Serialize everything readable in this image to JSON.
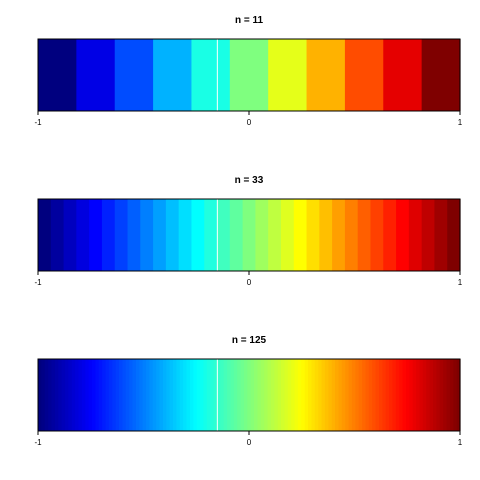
{
  "chart_data": [
    {
      "type": "heatmap",
      "title": "n =  11",
      "n": 11,
      "xlim": [
        -1,
        1
      ],
      "x_ticks": [
        -1,
        0,
        1
      ],
      "x_tick_labels": [
        "-1",
        "0",
        "1"
      ],
      "marker_x": -0.15,
      "marker_color": "#ffffff",
      "palette": "jet"
    },
    {
      "type": "heatmap",
      "title": "n =  33",
      "n": 33,
      "xlim": [
        -1,
        1
      ],
      "x_ticks": [
        -1,
        0,
        1
      ],
      "x_tick_labels": [
        "-1",
        "0",
        "1"
      ],
      "marker_x": -0.15,
      "marker_color": "#ffffff",
      "palette": "jet"
    },
    {
      "type": "heatmap",
      "title": "n = 125",
      "n": 125,
      "xlim": [
        -1,
        1
      ],
      "x_ticks": [
        -1,
        0,
        1
      ],
      "x_tick_labels": [
        "-1",
        "0",
        "1"
      ],
      "marker_x": -0.15,
      "marker_color": "#ffffff",
      "palette": "jet"
    }
  ],
  "palette_stops": [
    "#00007F",
    "#0000FF",
    "#007FFF",
    "#00FFFF",
    "#7FFF7F",
    "#FFFF00",
    "#FF7F00",
    "#FF0000",
    "#7F0000"
  ]
}
